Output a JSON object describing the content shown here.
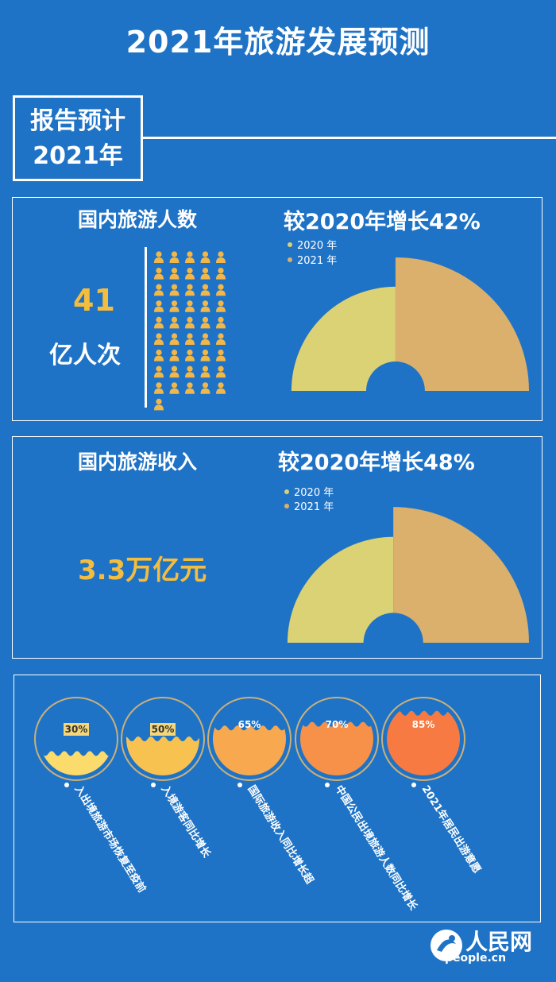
{
  "title": "2021年旅游发展预测",
  "report": {
    "line1": "报告预计",
    "line2": "2021年"
  },
  "panels": [
    {
      "heading": "国内旅游人数",
      "value_number": "41",
      "value_unit": "亿人次",
      "growth": "较2020年增长42%"
    },
    {
      "heading": "国内旅游收入",
      "value_number": "3.3万亿元",
      "growth": "较2020年增长48%"
    }
  ],
  "legend": [
    "2020 年",
    "2021 年"
  ],
  "chart_data": [
    {
      "type": "pie",
      "chart_style": "half-donut rose",
      "categories": [
        "2020 年",
        "2021 年"
      ],
      "values": [
        1,
        1.42
      ],
      "colors": [
        "#dbd175",
        "#dbb06c"
      ]
    },
    {
      "type": "pie",
      "chart_style": "half-donut rose",
      "categories": [
        "2020 年",
        "2021 年"
      ],
      "values": [
        1,
        1.48
      ],
      "colors": [
        "#dbd175",
        "#dbb06c"
      ]
    },
    {
      "type": "bar",
      "chart_style": "liquid-fill circles",
      "categories": [
        "入出境旅游市场恢复至疫前",
        "入境游客同比增长",
        "国际旅游收入同比增长超",
        "中国公民出境旅游人数同比增长",
        "2021年居民出游意愿"
      ],
      "values": [
        30,
        50,
        65,
        70,
        85
      ],
      "labels": [
        "30%",
        "50%",
        "65%",
        "70%",
        "85%"
      ],
      "colors": [
        "#fadb6b",
        "#f8c251",
        "#f8a94f",
        "#f7914a",
        "#f67a42"
      ],
      "ylim": [
        0,
        100
      ]
    }
  ],
  "colors": {
    "background": "#1f73c6",
    "accent": "#f4bd3e",
    "people_icon": "#f2b749"
  },
  "people_icon": "person-icon",
  "footer": {
    "logo_cn": "人民网",
    "logo_url": "people.cn"
  }
}
